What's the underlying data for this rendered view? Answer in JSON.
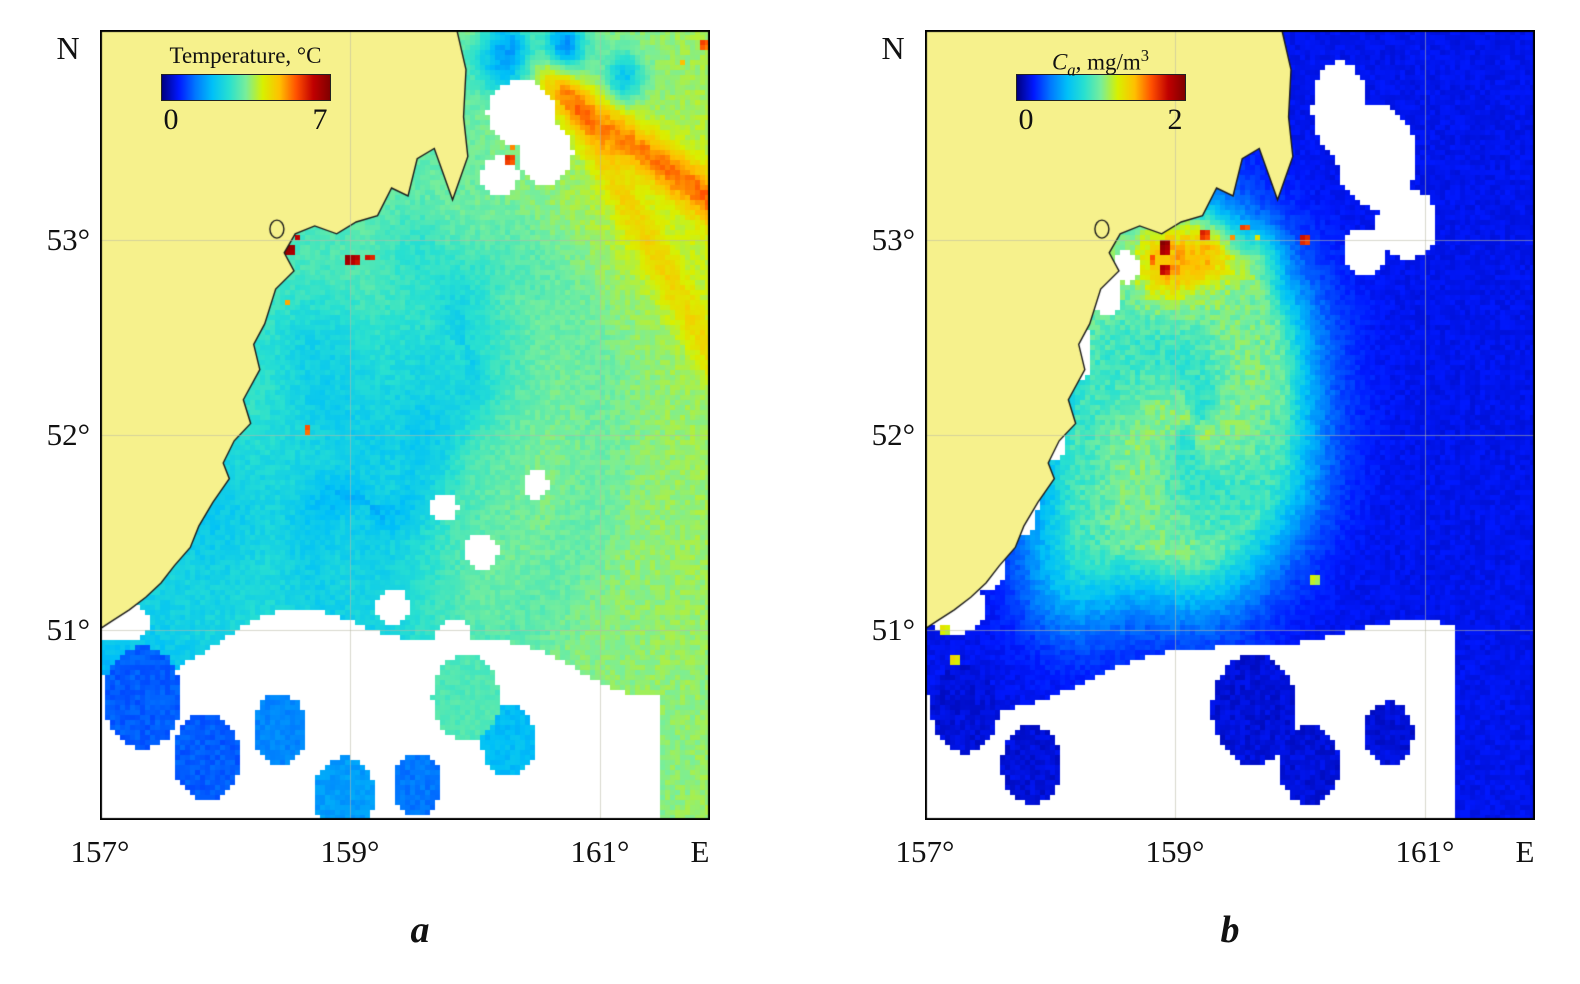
{
  "figure": {
    "compass_north": "N",
    "compass_east": "E",
    "panel_a_label": "a",
    "panel_b_label": "b",
    "lat_ticks": [
      "53°",
      "52°",
      "51°"
    ],
    "lon_ticks": [
      "157°",
      "159°",
      "161°"
    ]
  },
  "panels": {
    "a": {
      "colorbar": {
        "title": "Temperature, °C",
        "min": "0",
        "max": "7"
      }
    },
    "b": {
      "colorbar": {
        "title_symbol": "C",
        "title_sub": "a",
        "title_rest": ", mg/m",
        "title_sup": "3",
        "min": "0",
        "max": "2"
      }
    }
  },
  "colors": {
    "land": "#f6f18c",
    "cloud": "#ffffff",
    "coastline": "#1a1a1a",
    "grid": "#b9b9a6",
    "background": "#ffffff",
    "colormap": [
      "#000080",
      "#0018ff",
      "#0078ff",
      "#00c0f8",
      "#28e0d0",
      "#78ee9a",
      "#d8f000",
      "#ffc000",
      "#ff5000",
      "#c00000",
      "#800000"
    ]
  }
}
